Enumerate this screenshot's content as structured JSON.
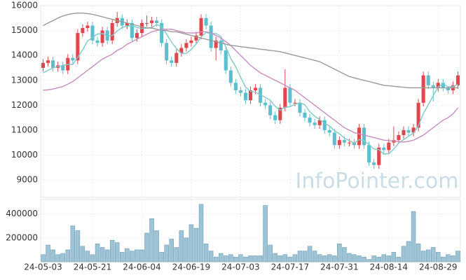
{
  "chart_data": {
    "type": "candlestick",
    "watermark": "InfoPointer.com",
    "categories": [
      "24-05-03",
      null,
      null,
      null,
      null,
      null,
      null,
      null,
      null,
      null,
      "24-05-21",
      null,
      null,
      null,
      null,
      null,
      null,
      null,
      null,
      null,
      "24-06-04",
      null,
      null,
      null,
      null,
      null,
      null,
      null,
      null,
      null,
      "24-06-19",
      null,
      null,
      null,
      null,
      null,
      null,
      null,
      null,
      null,
      "24-07-03",
      null,
      null,
      null,
      null,
      null,
      null,
      null,
      null,
      null,
      "24-07-17",
      null,
      null,
      null,
      null,
      null,
      null,
      null,
      null,
      null,
      "24-07-31",
      null,
      null,
      null,
      null,
      null,
      null,
      null,
      null,
      null,
      "24-08-14",
      null,
      null,
      null,
      null,
      null,
      null,
      null,
      null,
      null,
      "24-08-29",
      null,
      null,
      null,
      null
    ],
    "ohlc": [
      [
        13500,
        13850,
        13350,
        13700
      ],
      [
        13700,
        13950,
        13550,
        13800
      ],
      [
        13800,
        13950,
        13350,
        13500
      ],
      [
        13500,
        13750,
        13350,
        13600
      ],
      [
        13600,
        13750,
        13250,
        13400
      ],
      [
        13400,
        14050,
        13250,
        13900
      ],
      [
        13900,
        14050,
        13650,
        13800
      ],
      [
        13800,
        15050,
        13650,
        14900
      ],
      [
        14900,
        15250,
        14750,
        15100
      ],
      [
        15100,
        15350,
        14950,
        15200
      ],
      [
        15200,
        15350,
        14450,
        14600
      ],
      [
        14600,
        14750,
        14350,
        14500
      ],
      [
        14500,
        15150,
        14350,
        15000
      ],
      [
        15000,
        15150,
        14450,
        14600
      ],
      [
        14600,
        15450,
        14450,
        15300
      ],
      [
        15300,
        15750,
        15150,
        15500
      ],
      [
        15500,
        15650,
        15050,
        15200
      ],
      [
        15200,
        15450,
        15050,
        15300
      ],
      [
        15300,
        15450,
        14550,
        14700
      ],
      [
        14700,
        15050,
        14550,
        14900
      ],
      [
        14900,
        15450,
        14750,
        15300
      ],
      [
        15300,
        15600,
        15150,
        15300
      ],
      [
        15300,
        15550,
        15150,
        15400
      ],
      [
        15400,
        15550,
        15150,
        15300
      ],
      [
        15300,
        15450,
        14350,
        14500
      ],
      [
        14500,
        14650,
        13650,
        13800
      ],
      [
        13800,
        13950,
        13550,
        13700
      ],
      [
        13700,
        14250,
        13550,
        14100
      ],
      [
        14100,
        14450,
        13950,
        14300
      ],
      [
        14300,
        14650,
        14150,
        14500
      ],
      [
        14500,
        14750,
        14350,
        14600
      ],
      [
        14600,
        14950,
        14450,
        14800
      ],
      [
        14800,
        15650,
        14650,
        15500
      ],
      [
        15500,
        15650,
        15050,
        15200
      ],
      [
        15200,
        15350,
        14150,
        14300
      ],
      [
        14300,
        14750,
        13800,
        14600
      ],
      [
        14600,
        14750,
        14050,
        14200
      ],
      [
        14200,
        14350,
        13250,
        13400
      ],
      [
        13400,
        13550,
        12750,
        12900
      ],
      [
        12900,
        13050,
        12450,
        12600
      ],
      [
        12600,
        12750,
        12350,
        12500
      ],
      [
        12500,
        12650,
        12050,
        12200
      ],
      [
        12200,
        12750,
        12050,
        12600
      ],
      [
        12600,
        12850,
        12450,
        12700
      ],
      [
        12700,
        12850,
        11950,
        12100
      ],
      [
        12100,
        12250,
        11850,
        12000
      ],
      [
        12000,
        12150,
        11450,
        11600
      ],
      [
        11600,
        11750,
        11250,
        11400
      ],
      [
        11400,
        12050,
        11250,
        11900
      ],
      [
        11900,
        13450,
        11750,
        12700
      ],
      [
        12700,
        12850,
        11950,
        12100
      ],
      [
        12100,
        12250,
        11950,
        12100
      ],
      [
        12100,
        12250,
        11550,
        11700
      ],
      [
        11700,
        11850,
        11350,
        11500
      ],
      [
        11500,
        11650,
        11150,
        11300
      ],
      [
        11300,
        11450,
        11050,
        11200
      ],
      [
        11200,
        11550,
        11050,
        11400
      ],
      [
        11400,
        11550,
        10850,
        11000
      ],
      [
        11000,
        11150,
        10750,
        10900
      ],
      [
        10900,
        11050,
        10250,
        10400
      ],
      [
        10400,
        10750,
        10250,
        10600
      ],
      [
        10600,
        10750,
        10350,
        10500
      ],
      [
        10500,
        10650,
        10350,
        10500
      ],
      [
        10500,
        10650,
        10250,
        10400
      ],
      [
        10400,
        11250,
        10250,
        11100
      ],
      [
        11100,
        11250,
        10250,
        10400
      ],
      [
        10400,
        10550,
        9550,
        9700
      ],
      [
        9700,
        9850,
        9450,
        9600
      ],
      [
        9600,
        10450,
        9450,
        10300
      ],
      [
        10300,
        10450,
        10050,
        10200
      ],
      [
        10200,
        10650,
        10050,
        10500
      ],
      [
        10500,
        11150,
        10350,
        10600
      ],
      [
        10600,
        10950,
        10450,
        10800
      ],
      [
        10800,
        11150,
        10650,
        11000
      ],
      [
        11000,
        11150,
        10750,
        10900
      ],
      [
        10900,
        11250,
        10750,
        11100
      ],
      [
        11100,
        12250,
        10950,
        12100
      ],
      [
        12100,
        13350,
        11950,
        13200
      ],
      [
        13200,
        13350,
        12650,
        12800
      ],
      [
        12800,
        12950,
        12150,
        12700
      ],
      [
        12700,
        13050,
        12550,
        12900
      ],
      [
        12900,
        13050,
        12550,
        12700
      ],
      [
        12700,
        12750,
        12450,
        12600
      ],
      [
        12600,
        12950,
        12450,
        12800
      ],
      [
        12800,
        13350,
        12650,
        13200
      ]
    ],
    "up_color": "#e0474c",
    "down_color": "#5cbfcf",
    "series": [
      {
        "color": "#7ccaca",
        "values": [
          13300,
          13400,
          13500,
          13550,
          13600,
          13640,
          13640,
          13920,
          14220,
          14580,
          14720,
          14860,
          14880,
          14780,
          14800,
          14980,
          15120,
          15180,
          15200,
          15120,
          15080,
          15100,
          15120,
          15240,
          15160,
          14860,
          14540,
          14280,
          14080,
          14080,
          14240,
          14460,
          14740,
          14920,
          14880,
          14880,
          14760,
          14340,
          13880,
          13540,
          13120,
          12720,
          12560,
          12520,
          12420,
          12320,
          12200,
          11960,
          11800,
          11920,
          11940,
          12040,
          12100,
          12020,
          11740,
          11560,
          11420,
          11280,
          11160,
          10980,
          10860,
          10680,
          10580,
          10480,
          10620,
          10580,
          10420,
          10240,
          10220,
          10040,
          10060,
          10240,
          10480,
          10620,
          10760,
          10880,
          11180,
          11660,
          12020,
          12380,
          12740,
          12860,
          12740,
          12740,
          12840
        ]
      },
      {
        "color": "#c98cc2",
        "values": [
          12600,
          12620,
          12650,
          12700,
          12750,
          12850,
          12950,
          13100,
          13250,
          13400,
          13550,
          13700,
          13850,
          13950,
          14050,
          14200,
          14300,
          14450,
          14550,
          14650,
          14750,
          14850,
          14950,
          15000,
          15050,
          15050,
          15050,
          15000,
          14950,
          14900,
          14900,
          14900,
          14950,
          14950,
          14900,
          14800,
          14700,
          14550,
          14400,
          14200,
          14000,
          13800,
          13600,
          13450,
          13300,
          13200,
          13100,
          13000,
          12900,
          12800,
          12700,
          12600,
          12450,
          12300,
          12150,
          12000,
          11850,
          11700,
          11550,
          11400,
          11250,
          11100,
          11000,
          10900,
          10850,
          10800,
          10750,
          10700,
          10650,
          10600,
          10580,
          10560,
          10540,
          10520,
          10550,
          10600,
          10700,
          10800,
          10950,
          11100,
          11250,
          11400,
          11500,
          11650,
          11900
        ]
      },
      {
        "color": "#9a9a9a",
        "values": [
          15200,
          15300,
          15400,
          15500,
          15580,
          15640,
          15680,
          15700,
          15700,
          15680,
          15650,
          15600,
          15550,
          15500,
          15450,
          15400,
          15350,
          15300,
          15250,
          15200,
          15150,
          15100,
          15100,
          15050,
          15000,
          15000,
          14950,
          14950,
          14900,
          14850,
          14800,
          14750,
          14700,
          14650,
          14600,
          14550,
          14500,
          14450,
          14400,
          14380,
          14350,
          14330,
          14300,
          14280,
          14250,
          14230,
          14200,
          14180,
          14150,
          14100,
          14050,
          14000,
          13950,
          13900,
          13850,
          13800,
          13750,
          13650,
          13550,
          13450,
          13350,
          13250,
          13150,
          13100,
          13050,
          13000,
          12950,
          12900,
          12850,
          12800,
          12780,
          12760,
          12740,
          12720,
          12700,
          12700,
          12700,
          12700,
          12700,
          12700,
          12700,
          12700,
          12700,
          12700,
          12700
        ]
      }
    ],
    "ylim": [
      8300,
      16000
    ],
    "yticks": [
      9000,
      10000,
      11000,
      12000,
      13000,
      14000,
      15000,
      16000
    ],
    "grid": true,
    "volume": {
      "color": "#9dc3d6",
      "values": [
        60000,
        140000,
        100000,
        60000,
        70000,
        100000,
        300000,
        260000,
        130000,
        90000,
        60000,
        150000,
        120000,
        100000,
        180000,
        160000,
        80000,
        110000,
        90000,
        100000,
        100000,
        240000,
        360000,
        260000,
        80000,
        140000,
        190000,
        120000,
        260000,
        200000,
        310000,
        280000,
        480000,
        150000,
        90000,
        40000,
        70000,
        50000,
        60000,
        40000,
        60000,
        40000,
        50000,
        50000,
        50000,
        470000,
        140000,
        70000,
        50000,
        60000,
        40000,
        60000,
        90000,
        90000,
        130000,
        90000,
        60000,
        50000,
        60000,
        50000,
        150000,
        120000,
        70000,
        60000,
        50000,
        40000,
        20000,
        50000,
        40000,
        60000,
        50000,
        80000,
        40000,
        130000,
        170000,
        420000,
        150000,
        90000,
        100000,
        120000,
        80000,
        40000,
        60000,
        50000,
        90000
      ],
      "ylim": [
        0,
        520000
      ],
      "yticks": [
        200000,
        400000
      ]
    }
  }
}
